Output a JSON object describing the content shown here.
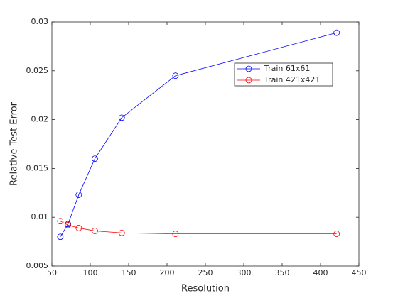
{
  "chart_data": {
    "type": "line",
    "xlabel": "Resolution",
    "ylabel": "Relative Test Error",
    "x": [
      61,
      71,
      85,
      106,
      141,
      211,
      421
    ],
    "series": [
      {
        "name": "Train 61x61",
        "color": "#0000ff",
        "values": [
          0.008,
          0.0093,
          0.0123,
          0.016,
          0.0202,
          0.0245,
          0.0289
        ]
      },
      {
        "name": "Train 421x421",
        "color": "#ff0000",
        "values": [
          0.0096,
          0.0092,
          0.0089,
          0.0086,
          0.0084,
          0.0083,
          0.0083
        ]
      }
    ],
    "xlim": [
      50,
      450
    ],
    "xticks": [
      50,
      100,
      150,
      200,
      250,
      300,
      350,
      400,
      450
    ],
    "ylim": [
      0.005,
      0.03
    ],
    "yticks": [
      0.005,
      0.01,
      0.015,
      0.02,
      0.025,
      0.03
    ],
    "grid": false,
    "legend": "northeast",
    "marker": "circle"
  }
}
